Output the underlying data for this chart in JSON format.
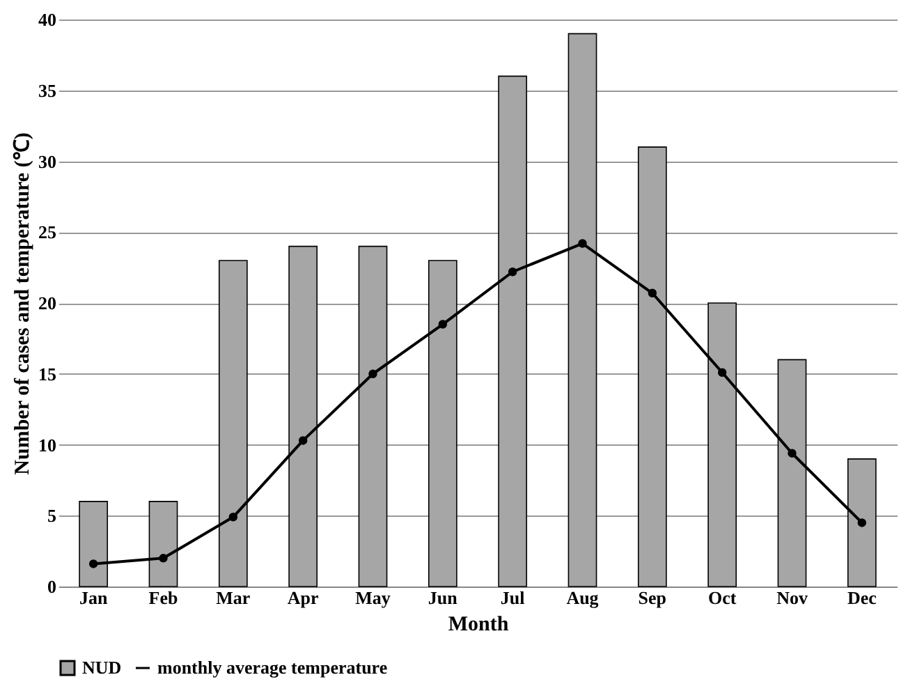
{
  "chart_data": {
    "type": "bar",
    "xlabel": "Month",
    "ylabel": "Number of cases  and temperature (℃)",
    "categories": [
      "Jan",
      "Feb",
      "Mar",
      "Apr",
      "May",
      "Jun",
      "Jul",
      "Aug",
      "Sep",
      "Oct",
      "Nov",
      "Dec"
    ],
    "series": [
      {
        "name": "NUD",
        "color": "#a6a6a6",
        "values": [
          6,
          6,
          23,
          24,
          24,
          23,
          36,
          39,
          31,
          20,
          16,
          9
        ]
      },
      {
        "name": "monthly average temperature",
        "type": "line",
        "color": "#000000",
        "marker": "circle",
        "values": [
          1.6,
          2.0,
          4.9,
          10.3,
          15.0,
          18.5,
          22.2,
          24.2,
          20.7,
          15.1,
          9.4,
          4.5
        ]
      }
    ],
    "ylim": [
      0,
      40
    ],
    "yticks": [
      0,
      5,
      10,
      15,
      20,
      25,
      30,
      35,
      40
    ],
    "grid": "y",
    "legend": "bottom"
  }
}
